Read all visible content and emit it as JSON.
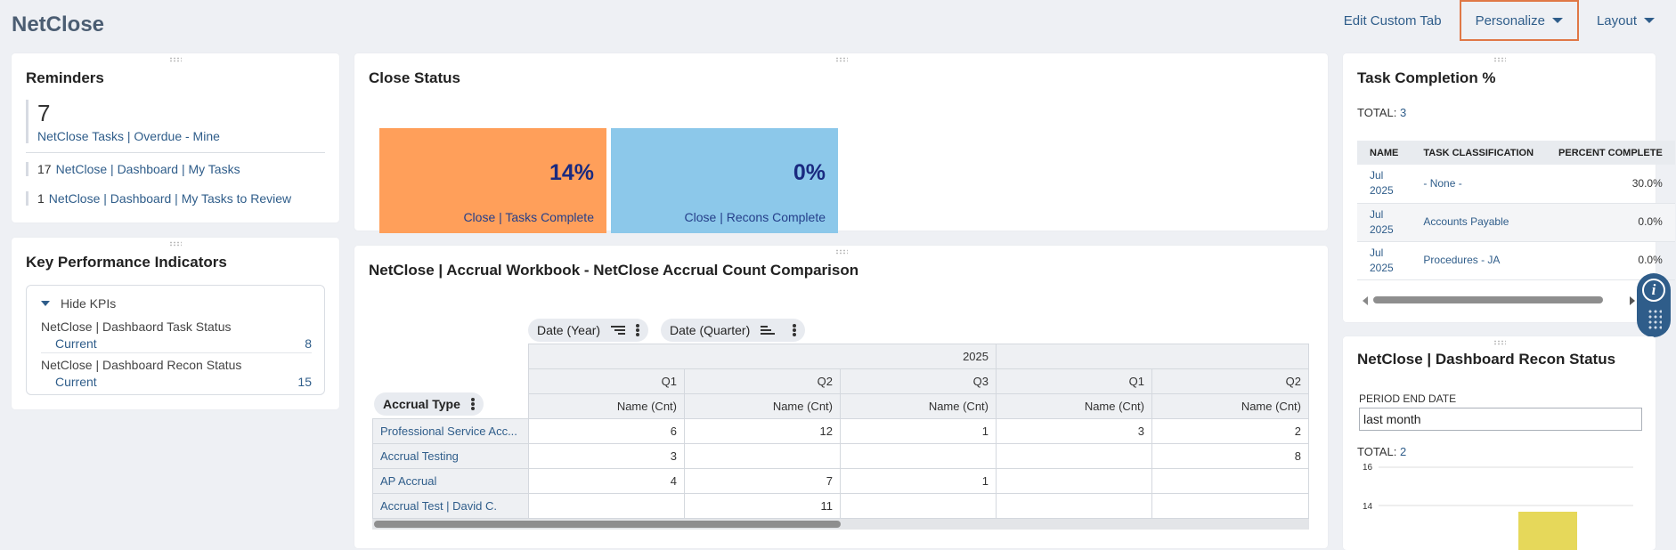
{
  "app": {
    "title": "NetClose"
  },
  "topnav": {
    "edit_custom_tab": "Edit Custom Tab",
    "personalize": "Personalize",
    "layout": "Layout"
  },
  "reminders": {
    "title": "Reminders",
    "primary": {
      "count": "7",
      "label": "NetClose Tasks | Overdue - Mine"
    },
    "items": [
      {
        "count": "17",
        "label": "NetClose | Dashboard | My Tasks"
      },
      {
        "count": "1",
        "label": "NetClose | Dashboard | My Tasks to Review"
      }
    ]
  },
  "kpi": {
    "title": "Key Performance Indicators",
    "toggle": "Hide KPIs",
    "rows": [
      {
        "name": "NetClose | Dashbaord Task Status",
        "period": "Current",
        "value": "8"
      },
      {
        "name": "NetClose | Dashboard Recon Status",
        "period": "Current",
        "value": "15"
      }
    ]
  },
  "close_status": {
    "title": "Close Status",
    "tiles": [
      {
        "value": "14%",
        "label": "Close | Tasks Complete",
        "color": "#ff9f5a"
      },
      {
        "value": "0%",
        "label": "Close | Recons Complete",
        "color": "#8cc8ea"
      }
    ]
  },
  "accrual": {
    "title": "NetClose | Accrual Workbook - NetClose Accrual Count Comparison",
    "pills": {
      "year": "Date (Year)",
      "quarter": "Date (Quarter)",
      "row": "Accrual Type"
    },
    "year_label": "2025",
    "quarters": [
      "Q1",
      "Q2",
      "Q3",
      "Q1",
      "Q2"
    ],
    "measure": "Name (Cnt)",
    "rows": [
      {
        "label": "Professional Service Acc...",
        "cells": [
          "6",
          "12",
          "1",
          "3",
          "2"
        ]
      },
      {
        "label": "Accrual Testing",
        "cells": [
          "3",
          "",
          "",
          "",
          "8"
        ]
      },
      {
        "label": "AP Accrual",
        "cells": [
          "4",
          "7",
          "1",
          "",
          ""
        ]
      },
      {
        "label": "Accrual Test | David C.",
        "cells": [
          "",
          "11",
          "",
          "",
          ""
        ]
      }
    ]
  },
  "task_completion": {
    "title": "Task Completion %",
    "total_label": "TOTAL:",
    "total": "3",
    "headers": [
      "NAME",
      "TASK CLASSIFICATION",
      "PERCENT COMPLETE"
    ],
    "rows": [
      {
        "name": "Jul 2025",
        "classification": "- None -",
        "percent": "30.0%"
      },
      {
        "name": "Jul 2025",
        "classification": "Accounts Payable",
        "percent": "0.0%"
      },
      {
        "name": "Jul 2025",
        "classification": "Procedures - JA",
        "percent": "0.0%"
      }
    ]
  },
  "recon_status": {
    "title": "NetClose | Dashboard Recon Status",
    "field_label": "PERIOD END DATE",
    "field_value": "last month",
    "total_label": "TOTAL:",
    "total": "2",
    "chart_data": {
      "type": "bar",
      "y_ticks": [
        "16",
        "14"
      ],
      "bar_color": "#e6d85a",
      "grid": true
    }
  }
}
